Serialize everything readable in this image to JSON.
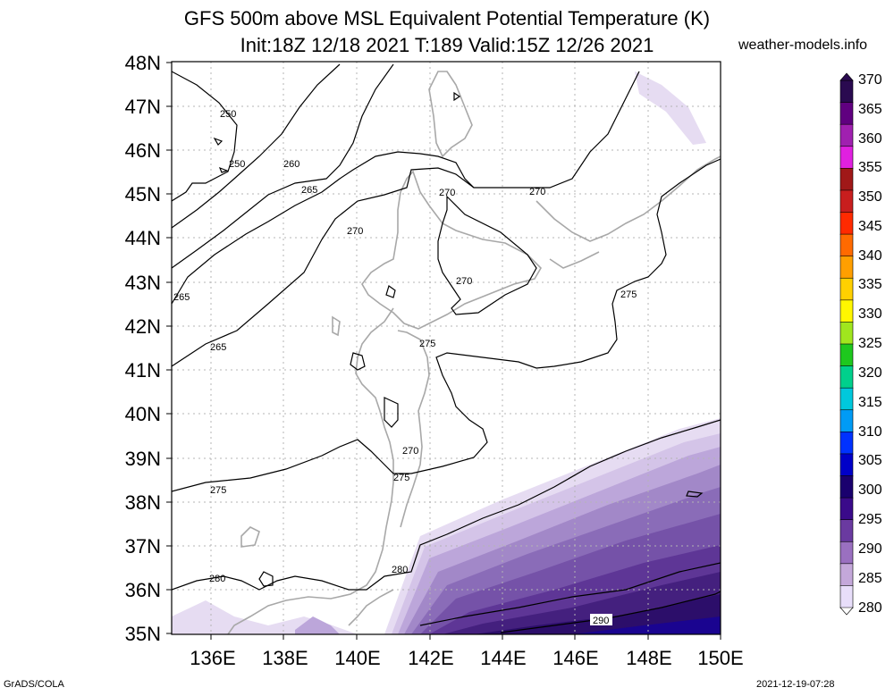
{
  "title": {
    "line1": "GFS 500m above MSL Equivalent Potential Temperature (K)",
    "line2": "Init:18Z 12/18 2021 T:189 Valid:15Z 12/26 2021"
  },
  "site": "weather-models.info",
  "footer": {
    "left": "GrADS/COLA",
    "right": "2021-12-19-07:28"
  },
  "map": {
    "lat_labels": [
      "48N",
      "47N",
      "46N",
      "45N",
      "44N",
      "43N",
      "42N",
      "41N",
      "40N",
      "39N",
      "38N",
      "37N",
      "36N",
      "35N"
    ],
    "lon_labels": [
      "136E",
      "138E",
      "140E",
      "142E",
      "144E",
      "146E",
      "148E",
      "150E"
    ]
  },
  "colorbar": {
    "labels": [
      "370",
      "365",
      "360",
      "355",
      "350",
      "345",
      "340",
      "335",
      "330",
      "325",
      "320",
      "315",
      "310",
      "305",
      "300",
      "295",
      "290",
      "285",
      "280"
    ],
    "colors": [
      "#2a0a50",
      "#600080",
      "#a020b0",
      "#e020e0",
      "#a01818",
      "#c81e1e",
      "#ff2a00",
      "#ff6a00",
      "#ff9f00",
      "#ffd000",
      "#fff700",
      "#a0e61e",
      "#1ec81e",
      "#00d08c",
      "#00c8dc",
      "#009bf5",
      "#0032ff",
      "#0000c8",
      "#1a006e",
      "#3a0a8a",
      "#6a3aa0",
      "#9a70c0",
      "#c4a8da",
      "#e8defa"
    ]
  },
  "contours": {
    "labels": [
      "250",
      "250",
      "260",
      "265",
      "270",
      "270",
      "270",
      "265",
      "270",
      "275",
      "275",
      "270",
      "275",
      "275",
      "280",
      "280",
      "290"
    ]
  }
}
